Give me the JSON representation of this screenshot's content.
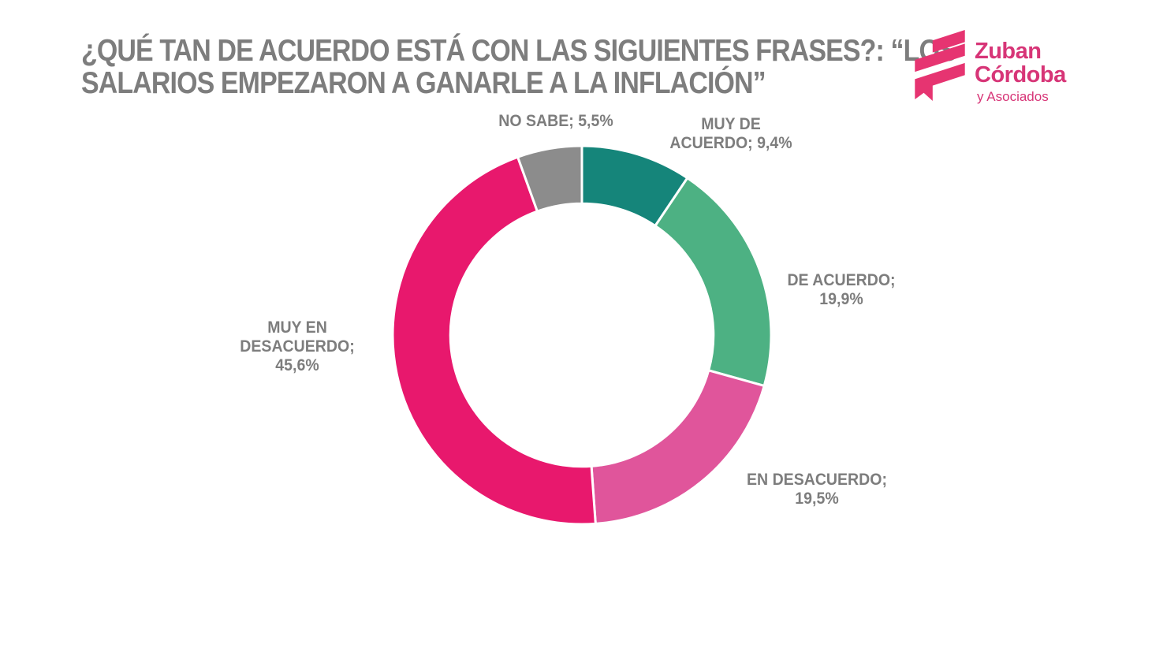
{
  "title": "¿QUÉ TAN DE ACUERDO ESTÁ CON LAS SIGUIENTES FRASES?: “LOS\nSALARIOS EMPEZARON A GANARLE A LA INFLACIÓN”",
  "logo": {
    "name": "Zuban\nCórdoba",
    "tagline": "y Asociados",
    "brand_color": "#d73577",
    "icon_color": "#e63471"
  },
  "colors": {
    "text_gray": "#7d7d7d",
    "background": "#ffffff"
  },
  "chart_data": {
    "type": "pie",
    "subtype": "donut",
    "title": "¿Qué tan de acuerdo está con las siguientes frases?: “Los salarios empezaron a ganarle a la inflación”",
    "unit": "%",
    "decimal_style": "comma",
    "direction": "clockwise",
    "start_angle_deg": 0,
    "inner_radius_ratio": 0.695,
    "legend_position": "outside-labels",
    "slices": [
      {
        "label": "MUY DE ACUERDO",
        "value": 9.4,
        "display": "MUY DE\nACUERDO; 9,4%",
        "color": "#15857a"
      },
      {
        "label": "DE ACUERDO",
        "value": 19.9,
        "display": "DE ACUERDO;\n19,9%",
        "color": "#4db183"
      },
      {
        "label": "EN DESACUERDO",
        "value": 19.5,
        "display": "EN DESACUERDO;\n19,5%",
        "color": "#e0559b"
      },
      {
        "label": "MUY EN DESACUERDO",
        "value": 45.6,
        "display": "MUY EN\nDESACUERDO;\n45,6%",
        "color": "#e8186d"
      },
      {
        "label": "NO SABE",
        "value": 5.5,
        "display": "NO SABE; 5,5%",
        "color": "#8c8c8c"
      }
    ]
  }
}
